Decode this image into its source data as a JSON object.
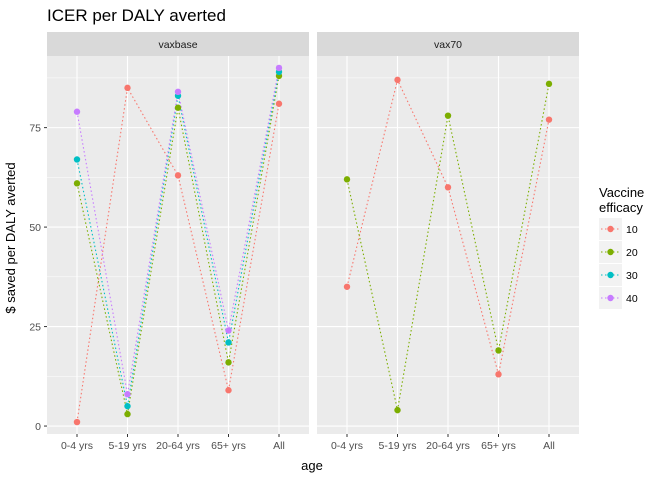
{
  "chart_data": {
    "type": "line",
    "title": "ICER per DALY averted",
    "xlabel": "age",
    "ylabel": "$ saved per DALY averted",
    "ylim": [
      -2,
      93
    ],
    "yticks": [
      0,
      25,
      50,
      75
    ],
    "categories": [
      "0-4 yrs",
      "5-19 yrs",
      "20-64 yrs",
      "65+ yrs",
      "All"
    ],
    "legend": {
      "title": "Vaccine efficacy",
      "title_lines": [
        "Vaccine",
        "efficacy"
      ],
      "position": "right"
    },
    "grid": true,
    "line_style": "dotted",
    "panels": [
      {
        "name": "vaxbase",
        "series": [
          {
            "name": "10",
            "color": "#F8766D",
            "values": [
              1,
              85,
              63,
              9,
              81
            ]
          },
          {
            "name": "20",
            "color": "#7CAE00",
            "values": [
              61,
              3,
              80,
              16,
              88
            ]
          },
          {
            "name": "30",
            "color": "#00BFC4",
            "values": [
              67,
              5,
              83,
              21,
              89
            ]
          },
          {
            "name": "40",
            "color": "#C77CFF",
            "values": [
              79,
              8,
              84,
              24,
              90
            ]
          }
        ]
      },
      {
        "name": "vax70",
        "series": [
          {
            "name": "10",
            "color": "#F8766D",
            "values": [
              35,
              87,
              60,
              13,
              77
            ]
          },
          {
            "name": "20",
            "color": "#7CAE00",
            "values": [
              62,
              4,
              78,
              19,
              86
            ]
          }
        ]
      }
    ],
    "legend_entries": [
      {
        "name": "10",
        "color": "#F8766D"
      },
      {
        "name": "20",
        "color": "#7CAE00"
      },
      {
        "name": "30",
        "color": "#00BFC4"
      },
      {
        "name": "40",
        "color": "#C77CFF"
      }
    ]
  }
}
